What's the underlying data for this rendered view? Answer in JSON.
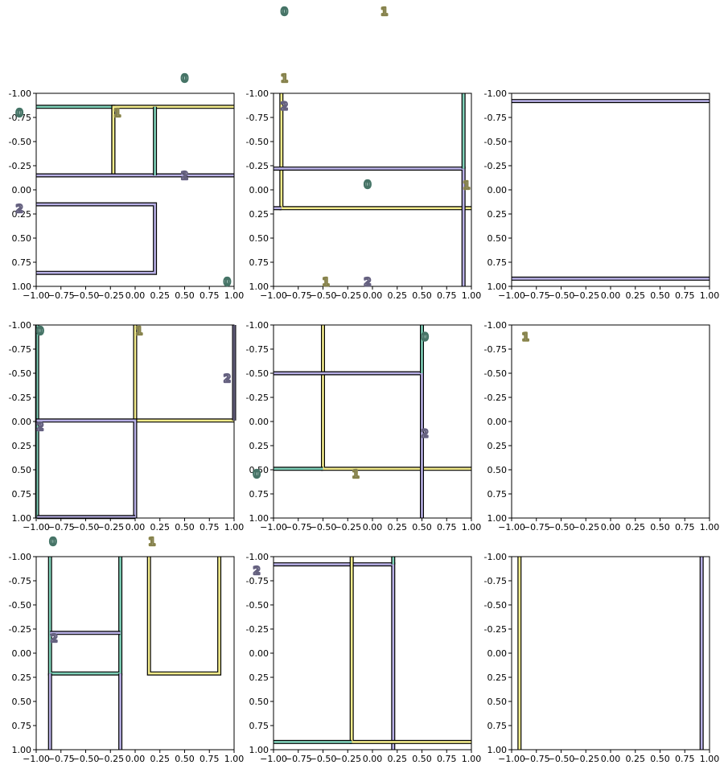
{
  "colors": {
    "0": "#7fd1b9",
    "1": "#f3ec8c",
    "2": "#b8b0e6",
    "frame": "#000000",
    "background": "#ffffff"
  },
  "chart_data": [
    {
      "type": "line",
      "title": "",
      "xlim": [
        -1,
        1
      ],
      "ylim": [
        1,
        -1
      ],
      "xticks": [
        "−1.00",
        "−0.75",
        "−0.50",
        "−0.25",
        "0.00",
        "0.25",
        "0.50",
        "0.75",
        "1.00"
      ],
      "yticks": [
        "-1.00",
        "-0.75",
        "-0.50",
        "-0.25",
        "0.00",
        "0.25",
        "0.50",
        "0.75",
        "1.00"
      ],
      "regions": [
        {
          "label": "0",
          "color_key": "0",
          "path": [
            [
              -1,
              -0.86
            ],
            [
              -0.22,
              -0.86
            ],
            [
              -0.22,
              -0.15
            ],
            [
              -1,
              -0.15
            ]
          ]
        },
        {
          "label": "1",
          "color_key": "1",
          "path": [
            [
              1,
              -0.86
            ],
            [
              -0.22,
              -0.86
            ],
            [
              -0.22,
              -0.15
            ],
            [
              1,
              -0.15
            ]
          ]
        },
        {
          "label": "2",
          "color_key": "2",
          "path": [
            [
              -1,
              -0.15
            ],
            [
              1,
              -0.15
            ]
          ]
        },
        {
          "label": "0",
          "color_key": "0",
          "path": [
            [
              0.2,
              -0.86
            ],
            [
              0.2,
              -0.15
            ]
          ]
        },
        {
          "label": "2",
          "color_key": "2",
          "path": [
            [
              -1,
              0.15
            ],
            [
              0.2,
              0.15
            ],
            [
              0.2,
              0.86
            ],
            [
              -1,
              0.86
            ]
          ]
        }
      ],
      "annotations": [
        {
          "text": "0",
          "x": 0.5,
          "y": -1.16
        },
        {
          "text": "0",
          "x": -1.17,
          "y": -0.8
        },
        {
          "text": "1",
          "x": -0.18,
          "y": -0.8
        },
        {
          "text": "2",
          "x": 0.5,
          "y": -0.15
        },
        {
          "text": "2",
          "x": -1.17,
          "y": 0.19
        },
        {
          "text": "0",
          "x": 0.93,
          "y": 0.95
        }
      ]
    },
    {
      "type": "line",
      "title": "",
      "xlim": [
        -1,
        1
      ],
      "ylim": [
        1,
        -1
      ],
      "xticks": [
        "−1.00",
        "−0.75",
        "−0.50",
        "−0.25",
        "0.00",
        "0.25",
        "0.50",
        "0.75",
        "1.00"
      ],
      "yticks": [
        "-1.00",
        "-0.75",
        "-0.50",
        "-0.25",
        "0.00",
        "0.25",
        "0.50",
        "0.75",
        "1.00"
      ],
      "regions": [
        {
          "label": "1",
          "color_key": "1",
          "path": [
            [
              -0.92,
              -1
            ],
            [
              -0.92,
              0.19
            ],
            [
              1,
              0.19
            ]
          ]
        },
        {
          "label": "2",
          "color_key": "2",
          "path": [
            [
              -1,
              -0.22
            ],
            [
              0.92,
              -0.22
            ],
            [
              0.92,
              1
            ]
          ]
        },
        {
          "label": "0",
          "color_key": "0",
          "path": [
            [
              0.92,
              -1
            ],
            [
              0.92,
              -0.22
            ]
          ]
        },
        {
          "label": "2",
          "color_key": "2",
          "path": [
            [
              -1,
              0.19
            ],
            [
              -0.92,
              0.19
            ]
          ]
        }
      ],
      "annotations": [
        {
          "text": "0",
          "x": -0.89,
          "y": -1.85
        },
        {
          "text": "1",
          "x": 0.12,
          "y": -1.85
        },
        {
          "text": "1",
          "x": -0.89,
          "y": -1.16
        },
        {
          "text": "2",
          "x": -0.89,
          "y": -0.87
        },
        {
          "text": "0",
          "x": -0.05,
          "y": -0.06
        },
        {
          "text": "1",
          "x": 0.95,
          "y": -0.05
        },
        {
          "text": "1",
          "x": -0.47,
          "y": 0.95
        },
        {
          "text": "2",
          "x": -0.05,
          "y": 0.95
        }
      ]
    },
    {
      "type": "line",
      "title": "",
      "xlim": [
        -1,
        1
      ],
      "ylim": [
        1,
        -1
      ],
      "xticks": [
        "−1.00",
        "−0.75",
        "−0.50",
        "−0.25",
        "0.00",
        "0.25",
        "0.50",
        "0.75",
        "1.00"
      ],
      "yticks": [
        "-1.00",
        "-0.75",
        "-0.50",
        "-0.25",
        "0.00",
        "0.25",
        "0.50",
        "0.75",
        "1.00"
      ],
      "regions": [
        {
          "label": "2",
          "color_key": "2",
          "path": [
            [
              -1,
              -0.92
            ],
            [
              1,
              -0.92
            ]
          ]
        },
        {
          "label": "2",
          "color_key": "2",
          "path": [
            [
              -1,
              0.92
            ],
            [
              1,
              0.92
            ]
          ]
        }
      ],
      "annotations": []
    },
    {
      "type": "line",
      "title": "",
      "xlim": [
        -1,
        1
      ],
      "ylim": [
        1,
        -1
      ],
      "xticks": [
        "−1.00",
        "−0.75",
        "−0.50",
        "−0.25",
        "0.00",
        "0.25",
        "0.50",
        "0.75",
        "1.00"
      ],
      "yticks": [
        "-1.00",
        "-0.75",
        "-0.50",
        "-0.25",
        "0.00",
        "0.25",
        "0.50",
        "0.75",
        "1.00"
      ],
      "regions": [
        {
          "label": "1",
          "color_key": "1",
          "path": [
            [
              0,
              -1
            ],
            [
              0,
              -0.01
            ],
            [
              1,
              -0.01
            ]
          ]
        },
        {
          "label": "0",
          "color_key": "0",
          "path": [
            [
              -0.99,
              -1
            ],
            [
              -0.99,
              1
            ]
          ]
        },
        {
          "label": "2",
          "color_key": "2",
          "path": [
            [
              -1,
              -0.01
            ],
            [
              0,
              -0.01
            ],
            [
              0,
              1
            ]
          ]
        },
        {
          "label": "2",
          "color_key": "2",
          "path": [
            [
              1,
              -1
            ],
            [
              1,
              -0.01
            ]
          ]
        },
        {
          "label": "2",
          "color_key": "2",
          "path": [
            [
              -0.99,
              0.99
            ],
            [
              0,
              0.99
            ]
          ]
        }
      ],
      "annotations": [
        {
          "text": "0",
          "x": -0.96,
          "y": -0.94
        },
        {
          "text": "1",
          "x": 0.04,
          "y": -0.94
        },
        {
          "text": "2",
          "x": 0.93,
          "y": -0.45
        },
        {
          "text": "2",
          "x": -0.96,
          "y": 0.05
        }
      ]
    },
    {
      "type": "line",
      "title": "",
      "xlim": [
        -1,
        1
      ],
      "ylim": [
        1,
        -1
      ],
      "xticks": [
        "−1.00",
        "−0.75",
        "−0.50",
        "−0.25",
        "0.00",
        "0.25",
        "0.50",
        "0.75",
        "1.00"
      ],
      "yticks": [
        "-1.00",
        "-0.75",
        "-0.50",
        "-0.25",
        "0.00",
        "0.25",
        "0.50",
        "0.75",
        "1.00"
      ],
      "regions": [
        {
          "label": "1",
          "color_key": "1",
          "path": [
            [
              -0.5,
              -1
            ],
            [
              -0.5,
              0.49
            ],
            [
              1,
              0.49
            ]
          ]
        },
        {
          "label": "2",
          "color_key": "2",
          "path": [
            [
              -1,
              -0.5
            ],
            [
              0.5,
              -0.5
            ],
            [
              0.5,
              1
            ]
          ]
        },
        {
          "label": "0",
          "color_key": "0",
          "path": [
            [
              0.5,
              -1
            ],
            [
              0.5,
              -0.5
            ]
          ]
        },
        {
          "label": "0",
          "color_key": "0",
          "path": [
            [
              -1,
              0.49
            ],
            [
              -0.5,
              0.49
            ]
          ]
        }
      ],
      "annotations": [
        {
          "text": "0",
          "x": 0.53,
          "y": -0.88
        },
        {
          "text": "2",
          "x": 0.53,
          "y": 0.12
        },
        {
          "text": "1",
          "x": -0.17,
          "y": 0.54
        },
        {
          "text": "0",
          "x": -1.17,
          "y": 0.54
        }
      ]
    },
    {
      "type": "line",
      "title": "",
      "xlim": [
        -1,
        1
      ],
      "ylim": [
        1,
        -1
      ],
      "xticks": [
        "−1.00",
        "−0.75",
        "−0.50",
        "−0.25",
        "0.00",
        "0.25",
        "0.50",
        "0.75",
        "1.00"
      ],
      "yticks": [
        "-1.00",
        "-0.75",
        "-0.50",
        "-0.25",
        "0.00",
        "0.25",
        "0.50",
        "0.75",
        "1.00"
      ],
      "regions": [],
      "annotations": [
        {
          "text": "1",
          "x": -0.86,
          "y": -0.88
        }
      ]
    },
    {
      "type": "line",
      "title": "",
      "xlim": [
        -1,
        1
      ],
      "ylim": [
        1,
        -1
      ],
      "xticks": [
        "−1.00",
        "−0.75",
        "−0.50",
        "−0.25",
        "0.00",
        "0.25",
        "0.50",
        "0.75",
        "1.00"
      ],
      "yticks": [
        "-1.00",
        "-0.75",
        "-0.50",
        "-0.25",
        "0.00",
        "0.25",
        "0.50",
        "0.75",
        "1.00"
      ],
      "regions": [
        {
          "label": "0",
          "color_key": "0",
          "path": [
            [
              -0.86,
              -1
            ],
            [
              -0.86,
              0.21
            ],
            [
              -0.15,
              0.21
            ],
            [
              -0.15,
              -1
            ]
          ]
        },
        {
          "label": "2",
          "color_key": "2",
          "path": [
            [
              -0.86,
              -0.21
            ],
            [
              -0.15,
              -0.21
            ]
          ]
        },
        {
          "label": "2",
          "color_key": "2",
          "path": [
            [
              -0.86,
              0.21
            ],
            [
              -0.86,
              1
            ]
          ]
        },
        {
          "label": "2",
          "color_key": "2",
          "path": [
            [
              -0.15,
              0.21
            ],
            [
              -0.15,
              1
            ]
          ]
        },
        {
          "label": "1",
          "color_key": "1",
          "path": [
            [
              0.14,
              -1
            ],
            [
              0.14,
              0.21
            ],
            [
              0.85,
              0.21
            ],
            [
              0.85,
              -1
            ]
          ]
        }
      ],
      "annotations": [
        {
          "text": "0",
          "x": -0.83,
          "y": -1.16
        },
        {
          "text": "1",
          "x": 0.17,
          "y": -1.16
        },
        {
          "text": "2",
          "x": -0.82,
          "y": -0.16
        }
      ]
    },
    {
      "type": "line",
      "title": "",
      "xlim": [
        -1,
        1
      ],
      "ylim": [
        1,
        -1
      ],
      "xticks": [
        "−1.00",
        "−0.75",
        "−0.50",
        "−0.25",
        "0.00",
        "0.25",
        "0.50",
        "0.75",
        "1.00"
      ],
      "yticks": [
        "-1.00",
        "-0.75",
        "-0.50",
        "-0.25",
        "0.00",
        "0.25",
        "0.50",
        "0.75",
        "1.00"
      ],
      "regions": [
        {
          "label": "2",
          "color_key": "2",
          "path": [
            [
              -1,
              -0.92
            ],
            [
              0.21,
              -0.92
            ],
            [
              0.21,
              1
            ]
          ]
        },
        {
          "label": "1",
          "color_key": "1",
          "path": [
            [
              -0.21,
              -1
            ],
            [
              -0.21,
              0.92
            ],
            [
              1,
              0.92
            ]
          ]
        },
        {
          "label": "0",
          "color_key": "0",
          "path": [
            [
              0.21,
              -1
            ],
            [
              0.21,
              -0.92
            ]
          ]
        },
        {
          "label": "0",
          "color_key": "0",
          "path": [
            [
              -1,
              0.92
            ],
            [
              -0.21,
              0.92
            ]
          ]
        }
      ],
      "annotations": [
        {
          "text": "2",
          "x": -1.17,
          "y": -0.86
        }
      ]
    },
    {
      "type": "line",
      "title": "",
      "xlim": [
        -1,
        1
      ],
      "ylim": [
        1,
        -1
      ],
      "xticks": [
        "−1.00",
        "−0.75",
        "−0.50",
        "−0.25",
        "0.00",
        "0.25",
        "0.50",
        "0.75",
        "1.00"
      ],
      "yticks": [
        "-1.00",
        "-0.75",
        "-0.50",
        "-0.25",
        "0.00",
        "0.25",
        "0.50",
        "0.75",
        "1.00"
      ],
      "regions": [
        {
          "label": "1",
          "color_key": "1",
          "path": [
            [
              -0.92,
              -1
            ],
            [
              -0.92,
              1
            ]
          ]
        },
        {
          "label": "2",
          "color_key": "2",
          "path": [
            [
              0.92,
              -1
            ],
            [
              0.92,
              1
            ]
          ]
        }
      ],
      "annotations": []
    }
  ]
}
